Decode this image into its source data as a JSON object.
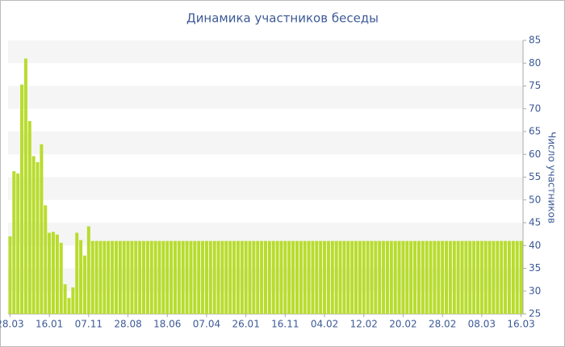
{
  "chart_data": {
    "type": "bar",
    "title": "Динамика участников беседы",
    "y_label": "Число участников",
    "categories": [
      "28.03",
      null,
      null,
      null,
      null,
      null,
      null,
      null,
      null,
      null,
      "16.01",
      null,
      null,
      null,
      null,
      null,
      null,
      null,
      null,
      null,
      "07.11",
      null,
      null,
      null,
      null,
      null,
      null,
      null,
      null,
      null,
      "28.08",
      null,
      null,
      null,
      null,
      null,
      null,
      null,
      null,
      null,
      "18.06",
      null,
      null,
      null,
      null,
      null,
      null,
      null,
      null,
      null,
      "07.04",
      null,
      null,
      null,
      null,
      null,
      null,
      null,
      null,
      null,
      "26.01",
      null,
      null,
      null,
      null,
      null,
      null,
      null,
      null,
      null,
      "16.11",
      null,
      null,
      null,
      null,
      null,
      null,
      null,
      null,
      null,
      "04.02",
      null,
      null,
      null,
      null,
      null,
      null,
      null,
      null,
      null,
      "12.02",
      null,
      null,
      null,
      null,
      null,
      null,
      null,
      null,
      null,
      "20.02",
      null,
      null,
      null,
      null,
      null,
      null,
      null,
      null,
      null,
      "28.02",
      null,
      null,
      null,
      null,
      null,
      null,
      null,
      null,
      null,
      "08.03",
      null,
      null,
      null,
      null,
      null,
      null,
      null,
      null,
      null,
      "16.03"
    ],
    "values": [
      42,
      56.3,
      55.8,
      75.3,
      81,
      67.3,
      59.6,
      58.3,
      62.2,
      48.8,
      42.8,
      43,
      42.4,
      40.6,
      31.5,
      28.5,
      30.8,
      42.8,
      41.2,
      37.8,
      44.2,
      41,
      41,
      41,
      41,
      41,
      41,
      41,
      41,
      41,
      41,
      41,
      41,
      41,
      41,
      41,
      41,
      41,
      41,
      41,
      41,
      41,
      41,
      41,
      41,
      41,
      41,
      41,
      41,
      41,
      41,
      41,
      41,
      41,
      41,
      41,
      41,
      41,
      41,
      41,
      41,
      41,
      41,
      41,
      41,
      41,
      41,
      41,
      41,
      41,
      41,
      41,
      41,
      41,
      41,
      41,
      41,
      41,
      41,
      41,
      41,
      41,
      41,
      41,
      41,
      41,
      41,
      41,
      41,
      41,
      41,
      41,
      41,
      41,
      41,
      41,
      41,
      41,
      41,
      41,
      41,
      41,
      41,
      41,
      41,
      41,
      41,
      41,
      41,
      41,
      41,
      41,
      41,
      41,
      41,
      41,
      41,
      41,
      41,
      41,
      41,
      41,
      41,
      41,
      41,
      41,
      41,
      41,
      41,
      41,
      41
    ],
    "color": "#b8dc2e",
    "ylim": [
      25,
      85
    ],
    "yticks": [
      25,
      30,
      35,
      40,
      45,
      50,
      55,
      60,
      65,
      70,
      75,
      80,
      85
    ],
    "grid": true
  }
}
